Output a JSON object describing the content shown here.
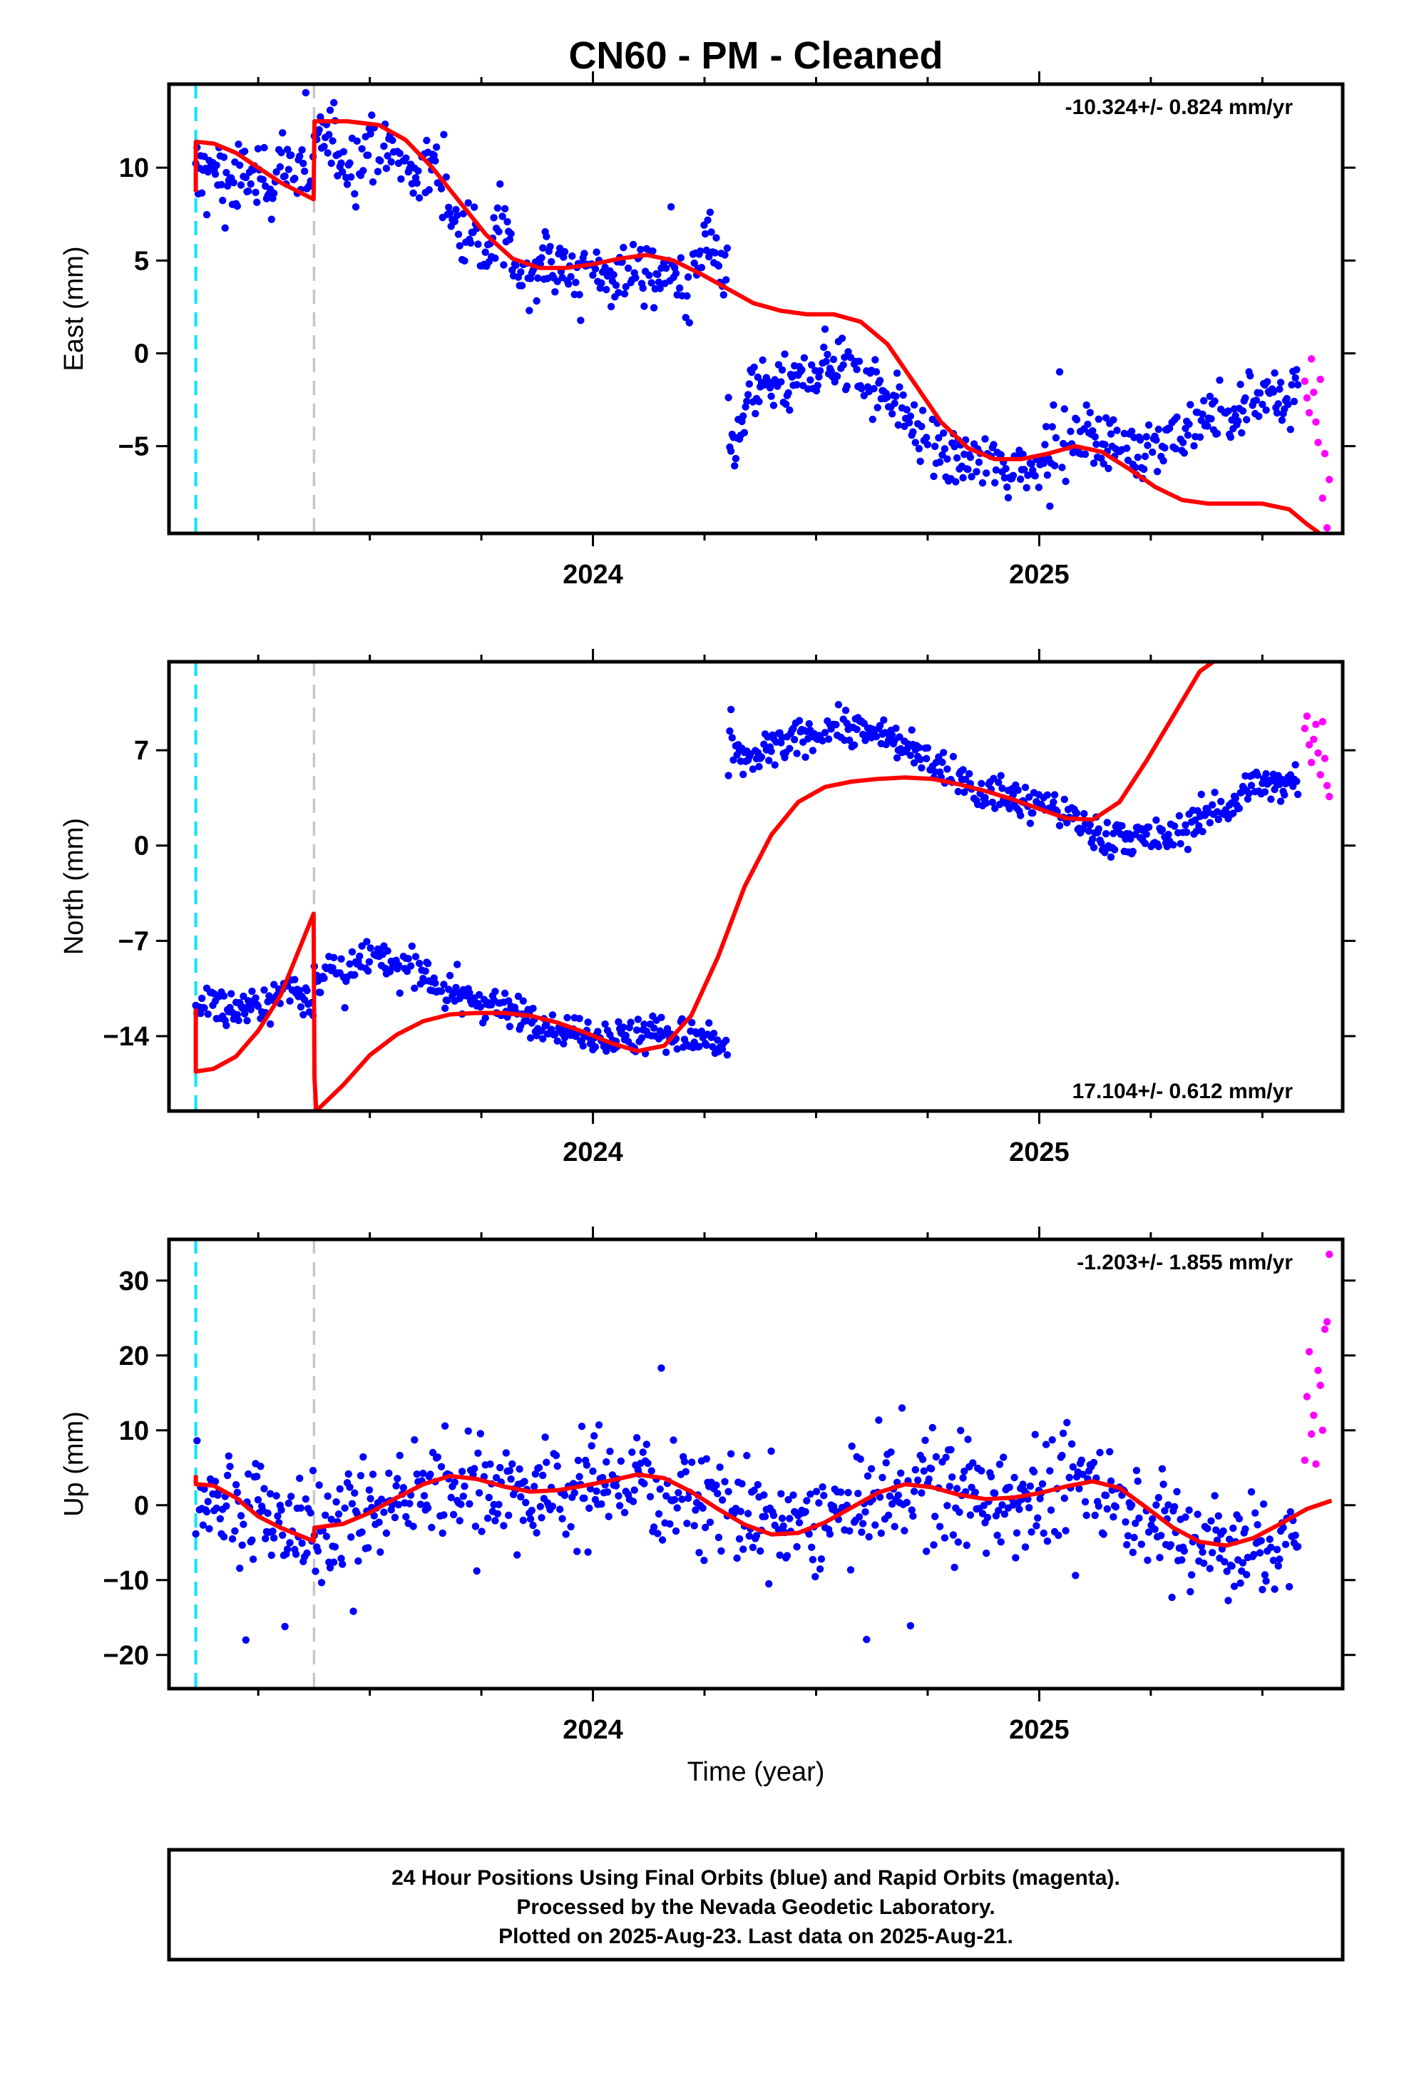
{
  "title": "CN60  - PM - Cleaned",
  "x_label": "Time (year)",
  "footer": {
    "line1": "24 Hour Positions Using Final Orbits (blue) and Rapid Orbits (magenta).",
    "line2": "Processed by the Nevada Geodetic Laboratory.",
    "line3": "Plotted on 2025-Aug-23. Last data on 2025-Aug-21."
  },
  "colors": {
    "final_orbits": "#0000ff",
    "rapid_orbits": "#ff00ff",
    "model": "#ff0000",
    "cyan_line": "#00e5ff",
    "gray_line": "#c8c8c8"
  },
  "chart_data": [
    {
      "type": "scatter",
      "ylabel": "East (mm)",
      "rate_text": "-10.324+/- 0.824 mm/yr",
      "rate_position": "top-right",
      "xlim": [
        2023.05,
        2025.68
      ],
      "ylim": [
        -9.7,
        14.5
      ],
      "x_ticks": [
        2024,
        2025
      ],
      "y_ticks": [
        -5,
        0,
        5,
        10
      ],
      "vertical_lines": [
        {
          "x": 2023.11,
          "color": "cyan"
        },
        {
          "x": 2023.375,
          "color": "gray"
        }
      ],
      "model": [
        [
          2023.11,
          8.7
        ],
        [
          2023.11,
          11.4
        ],
        [
          2023.15,
          11.3
        ],
        [
          2023.2,
          10.8
        ],
        [
          2023.25,
          10.0
        ],
        [
          2023.3,
          9.2
        ],
        [
          2023.374,
          8.3
        ],
        [
          2023.376,
          12.5
        ],
        [
          2023.45,
          12.5
        ],
        [
          2023.52,
          12.3
        ],
        [
          2023.58,
          11.5
        ],
        [
          2023.64,
          10.0
        ],
        [
          2023.7,
          8.2
        ],
        [
          2023.76,
          6.4
        ],
        [
          2023.82,
          5.1
        ],
        [
          2023.88,
          4.6
        ],
        [
          2023.94,
          4.6
        ],
        [
          2024.0,
          4.8
        ],
        [
          2024.06,
          5.1
        ],
        [
          2024.12,
          5.3
        ],
        [
          2024.18,
          5.0
        ],
        [
          2024.24,
          4.3
        ],
        [
          2024.3,
          3.5
        ],
        [
          2024.36,
          2.7
        ],
        [
          2024.42,
          2.3
        ],
        [
          2024.48,
          2.1
        ],
        [
          2024.54,
          2.1
        ],
        [
          2024.6,
          1.7
        ],
        [
          2024.66,
          0.5
        ],
        [
          2024.72,
          -1.6
        ],
        [
          2024.78,
          -3.7
        ],
        [
          2024.84,
          -5.1
        ],
        [
          2024.9,
          -5.7
        ],
        [
          2024.96,
          -5.7
        ],
        [
          2025.02,
          -5.4
        ],
        [
          2025.08,
          -5.0
        ],
        [
          2025.14,
          -5.3
        ],
        [
          2025.2,
          -6.2
        ],
        [
          2025.26,
          -7.2
        ],
        [
          2025.32,
          -7.9
        ],
        [
          2025.38,
          -8.1
        ],
        [
          2025.44,
          -8.1
        ],
        [
          2025.5,
          -8.1
        ],
        [
          2025.56,
          -8.4
        ],
        [
          2025.6,
          -9.2
        ],
        [
          2025.64,
          -9.9
        ]
      ],
      "final_series": [
        {
          "t": 2023.11,
          "v": 9.4,
          "a": 0.9
        },
        {
          "t": 2023.374,
          "v": 9.8,
          "a": -0.9
        },
        {
          "t": 2023.376,
          "v": 10.6,
          "a": 1.2
        },
        {
          "t": 2023.55,
          "v": 10.9,
          "a": -0.3
        },
        {
          "t": 2023.72,
          "v": 7.5,
          "a": -1.4
        },
        {
          "t": 2023.82,
          "v": 5.0,
          "a": -0.8
        },
        {
          "t": 2024.0,
          "v": 4.2,
          "a": 0.1
        },
        {
          "t": 2024.15,
          "v": 4.4,
          "a": -0.5
        },
        {
          "t": 2024.22,
          "v": 3.3,
          "a": 1.4
        },
        {
          "t": 2024.302,
          "v": 5.5,
          "a": 2.8
        },
        {
          "t": 2024.304,
          "v": -4.5,
          "a": -2.4
        },
        {
          "t": 2024.35,
          "v": -2.0,
          "a": 0.0
        },
        {
          "t": 2024.5,
          "v": -1.2,
          "a": 0.5
        },
        {
          "t": 2024.58,
          "v": -0.5,
          "a": 0.2
        },
        {
          "t": 2024.7,
          "v": -3.5,
          "a": -0.6
        },
        {
          "t": 2024.8,
          "v": -5.8,
          "a": 0.6
        },
        {
          "t": 2024.95,
          "v": -6.0,
          "a": -0.6
        },
        {
          "t": 2025.1,
          "v": -4.5,
          "a": 0.3
        },
        {
          "t": 2025.25,
          "v": -5.0,
          "a": 0.0
        },
        {
          "t": 2025.35,
          "v": -4.0,
          "a": 0.5
        },
        {
          "t": 2025.45,
          "v": -3.0,
          "a": 0.3
        },
        {
          "t": 2025.58,
          "v": -1.5,
          "a": 0.8
        }
      ],
      "final_scatter": 1.2,
      "rapid": [
        [
          2025.595,
          -1.5
        ],
        [
          2025.6,
          -2.4
        ],
        [
          2025.605,
          -3.2
        ],
        [
          2025.61,
          -0.3
        ],
        [
          2025.615,
          -2.1
        ],
        [
          2025.62,
          -3.7
        ],
        [
          2025.625,
          -4.8
        ],
        [
          2025.63,
          -1.4
        ],
        [
          2025.635,
          -7.8
        ],
        [
          2025.64,
          -5.4
        ],
        [
          2025.645,
          -9.4
        ],
        [
          2025.65,
          -6.8
        ]
      ]
    },
    {
      "type": "scatter",
      "ylabel": "North (mm)",
      "rate_text": "17.104+/- 0.612 mm/yr",
      "rate_position": "bottom-right",
      "xlim": [
        2023.05,
        2025.68
      ],
      "ylim": [
        -19.5,
        13.5
      ],
      "x_ticks": [
        2024,
        2025
      ],
      "y_ticks": [
        -14,
        -7,
        0,
        7
      ],
      "vertical_lines": [
        {
          "x": 2023.11,
          "color": "cyan"
        },
        {
          "x": 2023.375,
          "color": "gray"
        }
      ],
      "model": [
        [
          2023.11,
          -12.0
        ],
        [
          2023.11,
          -16.6
        ],
        [
          2023.15,
          -16.4
        ],
        [
          2023.2,
          -15.5
        ],
        [
          2023.25,
          -13.6
        ],
        [
          2023.3,
          -11.0
        ],
        [
          2023.374,
          -5.0
        ],
        [
          2023.376,
          -17.0
        ],
        [
          2023.38,
          -19.5
        ],
        [
          2023.44,
          -17.6
        ],
        [
          2023.5,
          -15.4
        ],
        [
          2023.56,
          -13.9
        ],
        [
          2023.62,
          -12.9
        ],
        [
          2023.68,
          -12.4
        ],
        [
          2023.74,
          -12.3
        ],
        [
          2023.8,
          -12.3
        ],
        [
          2023.86,
          -12.5
        ],
        [
          2023.92,
          -13.0
        ],
        [
          2023.98,
          -13.7
        ],
        [
          2024.04,
          -14.5
        ],
        [
          2024.1,
          -15.1
        ],
        [
          2024.16,
          -14.7
        ],
        [
          2024.22,
          -12.5
        ],
        [
          2024.28,
          -8.2
        ],
        [
          2024.34,
          -3.0
        ],
        [
          2024.4,
          0.8
        ],
        [
          2024.46,
          3.2
        ],
        [
          2024.52,
          4.3
        ],
        [
          2024.58,
          4.7
        ],
        [
          2024.64,
          4.9
        ],
        [
          2024.7,
          5.0
        ],
        [
          2024.76,
          4.9
        ],
        [
          2024.82,
          4.5
        ],
        [
          2024.88,
          4.0
        ],
        [
          2024.94,
          3.4
        ],
        [
          2025.0,
          2.7
        ],
        [
          2025.06,
          2.0
        ],
        [
          2025.12,
          1.9
        ],
        [
          2025.18,
          3.2
        ],
        [
          2025.24,
          6.2
        ],
        [
          2025.3,
          9.5
        ],
        [
          2025.36,
          12.8
        ],
        [
          2025.39,
          13.5
        ]
      ],
      "final_series": [
        {
          "t": 2023.11,
          "v": -12.2,
          "a": 0.7
        },
        {
          "t": 2023.374,
          "v": -10.8,
          "a": -0.6
        },
        {
          "t": 2023.376,
          "v": -10.2,
          "a": 0.9
        },
        {
          "t": 2023.52,
          "v": -8.0,
          "a": -0.4
        },
        {
          "t": 2023.68,
          "v": -10.5,
          "a": -0.6
        },
        {
          "t": 2023.85,
          "v": -12.8,
          "a": 0.4
        },
        {
          "t": 2024.0,
          "v": -13.9,
          "a": -0.2
        },
        {
          "t": 2024.15,
          "v": -14.0,
          "a": 0.5
        },
        {
          "t": 2024.302,
          "v": -14.4,
          "a": -0.7
        },
        {
          "t": 2024.304,
          "v": 9.0,
          "a": -3.0
        },
        {
          "t": 2024.36,
          "v": 6.0,
          "a": 0.6
        },
        {
          "t": 2024.52,
          "v": 9.0,
          "a": -0.3
        },
        {
          "t": 2024.65,
          "v": 8.3,
          "a": 0.4
        },
        {
          "t": 2024.75,
          "v": 6.3,
          "a": -0.6
        },
        {
          "t": 2024.9,
          "v": 3.5,
          "a": 0.4
        },
        {
          "t": 2025.05,
          "v": 2.6,
          "a": -0.2
        },
        {
          "t": 2025.15,
          "v": 0.6,
          "a": 0.6
        },
        {
          "t": 2025.28,
          "v": 0.4,
          "a": -0.3
        },
        {
          "t": 2025.35,
          "v": 1.5,
          "a": 0.2
        },
        {
          "t": 2025.45,
          "v": 3.8,
          "a": 0.7
        },
        {
          "t": 2025.58,
          "v": 5.0,
          "a": -0.4
        }
      ],
      "final_scatter": 1.0,
      "rapid": [
        [
          2025.595,
          8.6
        ],
        [
          2025.6,
          9.5
        ],
        [
          2025.605,
          7.4
        ],
        [
          2025.61,
          6.1
        ],
        [
          2025.615,
          7.8
        ],
        [
          2025.62,
          8.9
        ],
        [
          2025.625,
          6.8
        ],
        [
          2025.63,
          5.2
        ],
        [
          2025.635,
          9.1
        ],
        [
          2025.64,
          6.4
        ],
        [
          2025.645,
          4.4
        ],
        [
          2025.65,
          3.6
        ]
      ]
    },
    {
      "type": "scatter",
      "ylabel": "Up (mm)",
      "rate_text": "-1.203+/- 1.855 mm/yr",
      "rate_position": "top-right",
      "xlim": [
        2023.05,
        2025.68
      ],
      "ylim": [
        -24.5,
        35.5
      ],
      "x_ticks": [
        2024,
        2025
      ],
      "y_ticks": [
        -20,
        -10,
        0,
        10,
        20,
        30
      ],
      "vertical_lines": [
        {
          "x": 2023.11,
          "color": "cyan"
        },
        {
          "x": 2023.375,
          "color": "gray"
        }
      ],
      "model": [
        [
          2023.11,
          4.0
        ],
        [
          2023.11,
          2.8
        ],
        [
          2023.15,
          2.6
        ],
        [
          2023.2,
          1.0
        ],
        [
          2023.25,
          -1.5
        ],
        [
          2023.3,
          -3.0
        ],
        [
          2023.374,
          -4.8
        ],
        [
          2023.376,
          -3.0
        ],
        [
          2023.44,
          -2.5
        ],
        [
          2023.5,
          -1.0
        ],
        [
          2023.56,
          1.0
        ],
        [
          2023.62,
          2.8
        ],
        [
          2023.68,
          3.9
        ],
        [
          2023.74,
          3.5
        ],
        [
          2023.8,
          2.5
        ],
        [
          2023.86,
          1.8
        ],
        [
          2023.92,
          2.0
        ],
        [
          2023.98,
          2.6
        ],
        [
          2024.04,
          3.3
        ],
        [
          2024.1,
          4.1
        ],
        [
          2024.16,
          3.6
        ],
        [
          2024.22,
          1.8
        ],
        [
          2024.28,
          -0.5
        ],
        [
          2024.34,
          -2.6
        ],
        [
          2024.4,
          -3.9
        ],
        [
          2024.46,
          -3.7
        ],
        [
          2024.52,
          -2.3
        ],
        [
          2024.58,
          -0.3
        ],
        [
          2024.64,
          1.7
        ],
        [
          2024.7,
          2.8
        ],
        [
          2024.76,
          2.4
        ],
        [
          2024.82,
          1.4
        ],
        [
          2024.88,
          0.8
        ],
        [
          2024.94,
          1.0
        ],
        [
          2025.0,
          1.6
        ],
        [
          2025.06,
          2.5
        ],
        [
          2025.12,
          3.2
        ],
        [
          2025.18,
          2.3
        ],
        [
          2025.24,
          -0.3
        ],
        [
          2025.3,
          -3.0
        ],
        [
          2025.36,
          -4.9
        ],
        [
          2025.42,
          -5.4
        ],
        [
          2025.48,
          -4.4
        ],
        [
          2025.54,
          -2.5
        ],
        [
          2025.6,
          -0.5
        ],
        [
          2025.655,
          0.6
        ]
      ],
      "final_series": [
        {
          "t": 2023.11,
          "v": 2.5,
          "a": 0.0
        },
        {
          "t": 2023.374,
          "v": -4.5,
          "a": 0.0
        },
        {
          "t": 2023.376,
          "v": -3.5,
          "a": 0.0
        },
        {
          "t": 2023.56,
          "v": 0.5,
          "a": 0.0
        },
        {
          "t": 2023.7,
          "v": 3.5,
          "a": 0.0
        },
        {
          "t": 2023.9,
          "v": 1.5,
          "a": 0.0
        },
        {
          "t": 2024.1,
          "v": 4.0,
          "a": 0.0
        },
        {
          "t": 2024.3,
          "v": 0.0,
          "a": 0.0
        },
        {
          "t": 2024.42,
          "v": -3.8,
          "a": 0.0
        },
        {
          "t": 2024.6,
          "v": 0.0,
          "a": 0.0
        },
        {
          "t": 2024.75,
          "v": 2.5,
          "a": 0.0
        },
        {
          "t": 2024.95,
          "v": 1.0,
          "a": 0.0
        },
        {
          "t": 2025.12,
          "v": 3.0,
          "a": 0.0
        },
        {
          "t": 2025.3,
          "v": -3.0,
          "a": 0.0
        },
        {
          "t": 2025.45,
          "v": -6.0,
          "a": 0.0
        },
        {
          "t": 2025.58,
          "v": -5.5,
          "a": 0.0
        }
      ],
      "final_scatter": 5.5,
      "rapid": [
        [
          2025.595,
          6.0
        ],
        [
          2025.6,
          14.5
        ],
        [
          2025.605,
          20.5
        ],
        [
          2025.61,
          9.5
        ],
        [
          2025.615,
          12.0
        ],
        [
          2025.62,
          5.5
        ],
        [
          2025.625,
          18.0
        ],
        [
          2025.63,
          16.0
        ],
        [
          2025.635,
          10.0
        ],
        [
          2025.64,
          23.5
        ],
        [
          2025.645,
          24.5
        ],
        [
          2025.65,
          33.5
        ]
      ]
    }
  ]
}
